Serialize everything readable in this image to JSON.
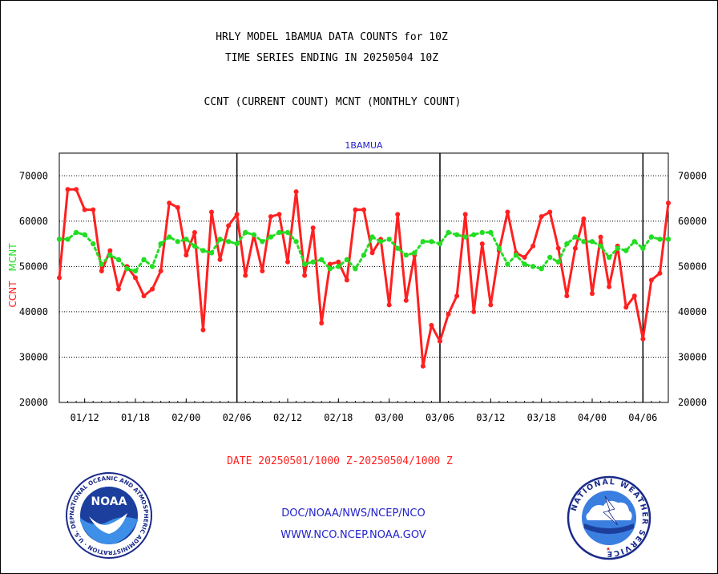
{
  "header": {
    "title_line1": "HRLY MODEL 1BAMUA DATA COUNTS for 10Z",
    "title_line2": "TIME SERIES ENDING IN 20250504 10Z",
    "title_line3": "CCNT (CURRENT COUNT) MCNT (MONTHLY COUNT)"
  },
  "chart_data": {
    "type": "line",
    "title": "1BAMUA",
    "ylabel_left_1": "CCNT",
    "ylabel_left_2": "MCNT",
    "xlabel": "DATE 20250501/1000 Z-20250504/1000 Z",
    "ylim": [
      20000,
      75000
    ],
    "yticks": [
      20000,
      30000,
      40000,
      50000,
      60000,
      70000
    ],
    "ytick_labels": [
      "20000",
      "30000",
      "40000",
      "50000",
      "60000",
      "70000"
    ],
    "xtick_labels": [
      "01/12",
      "01/18",
      "02/00",
      "02/06",
      "02/12",
      "02/18",
      "03/00",
      "03/06",
      "03/12",
      "03/18",
      "04/00",
      "04/06"
    ],
    "grid": true,
    "colors": {
      "ccnt": "#ff2020",
      "mcnt": "#22dd22",
      "axis_title": "#2222cc",
      "text": "#000000"
    },
    "series": [
      {
        "name": "CCNT",
        "values": [
          47500,
          67000,
          67000,
          62500,
          62500,
          49000,
          53500,
          45000,
          50000,
          47500,
          43500,
          45000,
          49000,
          64000,
          63000,
          52500,
          57500,
          36000,
          62000,
          51500,
          59000,
          61500,
          48000,
          57000,
          49000,
          61000,
          61500,
          51000,
          66500,
          48000,
          58500,
          37500,
          50500,
          51000,
          47000,
          62500,
          62500,
          53000,
          56000,
          41500,
          61500,
          42500,
          52500,
          28000,
          37000,
          33500,
          39500,
          43500,
          61500,
          40000,
          55000,
          41500,
          53500,
          62000,
          53000,
          52000,
          54500,
          61000,
          62000,
          54000,
          43500,
          54000,
          60500,
          44000,
          56500,
          45500,
          54500,
          41000,
          43500,
          34000,
          47000,
          48500,
          64000
        ]
      },
      {
        "name": "MCNT",
        "values": [
          56000,
          56000,
          57500,
          57000,
          55000,
          50500,
          52500,
          51500,
          49500,
          49000,
          51500,
          50000,
          55000,
          56500,
          55500,
          56000,
          54500,
          53500,
          53000,
          56000,
          55500,
          55000,
          57500,
          57000,
          55500,
          56500,
          57500,
          57500,
          55500,
          50500,
          51000,
          51500,
          49500,
          50000,
          51500,
          49500,
          52500,
          56500,
          55500,
          56000,
          54000,
          52500,
          53000,
          55500,
          55500,
          55000,
          57500,
          57000,
          56500,
          57000,
          57500,
          57500,
          54000,
          50500,
          52500,
          50500,
          50000,
          49500,
          52000,
          51000,
          55000,
          56500,
          55500,
          55500,
          54500,
          52000,
          54000,
          53500,
          55500,
          54000,
          56500,
          56000,
          56000
        ]
      }
    ]
  },
  "footer": {
    "agency": "DOC/NOAA/NWS/NCEP/NCO",
    "website": "WWW.NCO.NCEP.NOAA.GOV",
    "noaa_logo_text": "NOAA",
    "noaa_ring_text": "NATIONAL OCEANIC AND ATMOSPHERIC ADMINISTRATION · U.S. DEPARTMENT OF COMMERCE",
    "nws_ring_text": "NATIONAL WEATHER SERVICE"
  }
}
